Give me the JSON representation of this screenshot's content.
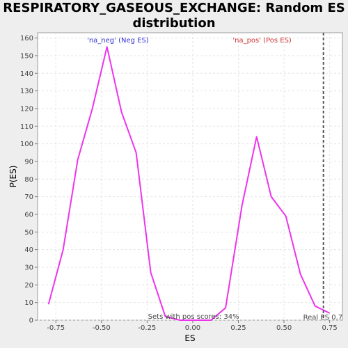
{
  "chart_data": {
    "type": "line",
    "title": "RESPIRATORY_GASEOUS_EXCHANGE: Random ES distribution",
    "xlabel": "ES",
    "ylabel": "P(ES)",
    "xlim": [
      -0.85,
      0.82
    ],
    "ylim": [
      0,
      163
    ],
    "x_ticks": [
      -0.75,
      -0.5,
      -0.25,
      0.0,
      0.25,
      0.5,
      0.75
    ],
    "x_tick_labels": [
      "-0.75",
      "-0.50",
      "-0.25",
      "0.00",
      "0.25",
      "0.50",
      "0.75"
    ],
    "y_ticks": [
      0,
      10,
      20,
      30,
      40,
      50,
      60,
      70,
      80,
      90,
      100,
      110,
      120,
      130,
      140,
      150,
      160
    ],
    "y_tick_labels": [
      "0",
      "10",
      "20",
      "30",
      "40",
      "50",
      "60",
      "70",
      "80",
      "90",
      "100",
      "110",
      "120",
      "130",
      "140",
      "150",
      "160"
    ],
    "grid": true,
    "series": [
      {
        "color": "#ee33ee",
        "x": [
          -0.79,
          -0.71,
          -0.63,
          -0.55,
          -0.47,
          -0.39,
          -0.31,
          -0.23,
          -0.15,
          -0.07,
          0.01,
          0.1,
          0.18,
          0.27,
          0.35,
          0.43,
          0.51,
          0.59,
          0.67,
          0.75
        ],
        "y": [
          9,
          40,
          91,
          120,
          155,
          118,
          95,
          27,
          2,
          0,
          0,
          0,
          7,
          65,
          104,
          70,
          59,
          26,
          8,
          4
        ]
      }
    ],
    "real_es": {
      "x": 0.716,
      "label": "Real ES 0.7",
      "color": "#555555"
    },
    "annotations": {
      "neg": {
        "text": "'na_neg' (Neg ES)",
        "color": "#3333cc"
      },
      "pos": {
        "text": "'na_pos' (Pos ES)",
        "color": "#cc3333"
      },
      "pos_scores": {
        "text": "Sets with pos scores: 34%",
        "color": "#444444"
      }
    }
  }
}
